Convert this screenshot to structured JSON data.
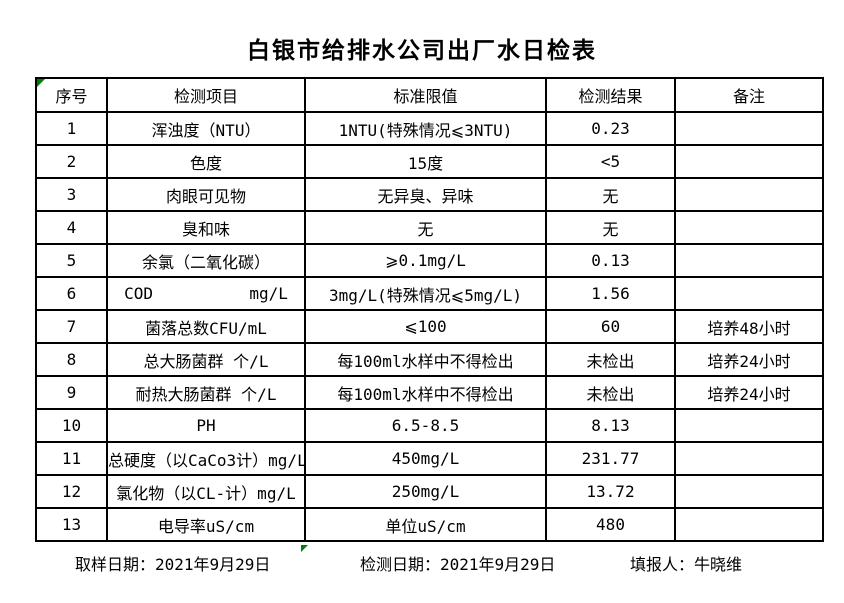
{
  "title": "白银市给排水公司出厂水日检表",
  "table": {
    "headers": [
      "序号",
      "检测项目",
      "标准限值",
      "检测结果",
      "备注"
    ],
    "rows": [
      {
        "no": "1",
        "item": "浑浊度（NTU）",
        "limit": "1NTU(特殊情况⩽3NTU)",
        "result": "0.23",
        "remark": ""
      },
      {
        "no": "2",
        "item": "色度",
        "limit": "15度",
        "result": "<5",
        "remark": ""
      },
      {
        "no": "3",
        "item": "肉眼可见物",
        "limit": "无异臭、异味",
        "result": "无",
        "remark": ""
      },
      {
        "no": "4",
        "item": "臭和味",
        "limit": "无",
        "result": "无",
        "remark": ""
      },
      {
        "no": "5",
        "item": "余氯（二氧化碳）",
        "limit": "⩾0.1mg/L",
        "result": "0.13",
        "remark": ""
      },
      {
        "no": "6",
        "item": "COD          mg/L",
        "limit": "3mg/L(特殊情况⩽5mg/L)",
        "result": "1.56",
        "remark": ""
      },
      {
        "no": "7",
        "item": "菌落总数CFU/mL",
        "limit": "⩽100",
        "result": "60",
        "remark": "培养48小时"
      },
      {
        "no": "8",
        "item": "总大肠菌群 个/L",
        "limit": "每100ml水样中不得检出",
        "result": "未检出",
        "remark": "培养24小时"
      },
      {
        "no": "9",
        "item": "耐热大肠菌群 个/L",
        "limit": "每100ml水样中不得检出",
        "result": "未检出",
        "remark": "培养24小时"
      },
      {
        "no": "10",
        "item": "PH",
        "limit": "6.5-8.5",
        "result": "8.13",
        "remark": ""
      },
      {
        "no": "11",
        "item": "总硬度（以CaCo3计）mg/L",
        "limit": "450mg/L",
        "result": "231.77",
        "remark": ""
      },
      {
        "no": "12",
        "item": "氯化物（以CL-计）mg/L",
        "limit": "250mg/L",
        "result": "13.72",
        "remark": ""
      },
      {
        "no": "13",
        "item": "电导率uS/cm",
        "limit": "单位uS/cm",
        "result": "480",
        "remark": ""
      }
    ]
  },
  "footer": {
    "sampling_date": "取样日期：2021年9月29日",
    "test_date": "检测日期：2021年9月29日",
    "reporter": "填报人：牛晓维"
  },
  "colors": {
    "marker_green": "#008000",
    "border": "#000000",
    "background": "#ffffff"
  }
}
